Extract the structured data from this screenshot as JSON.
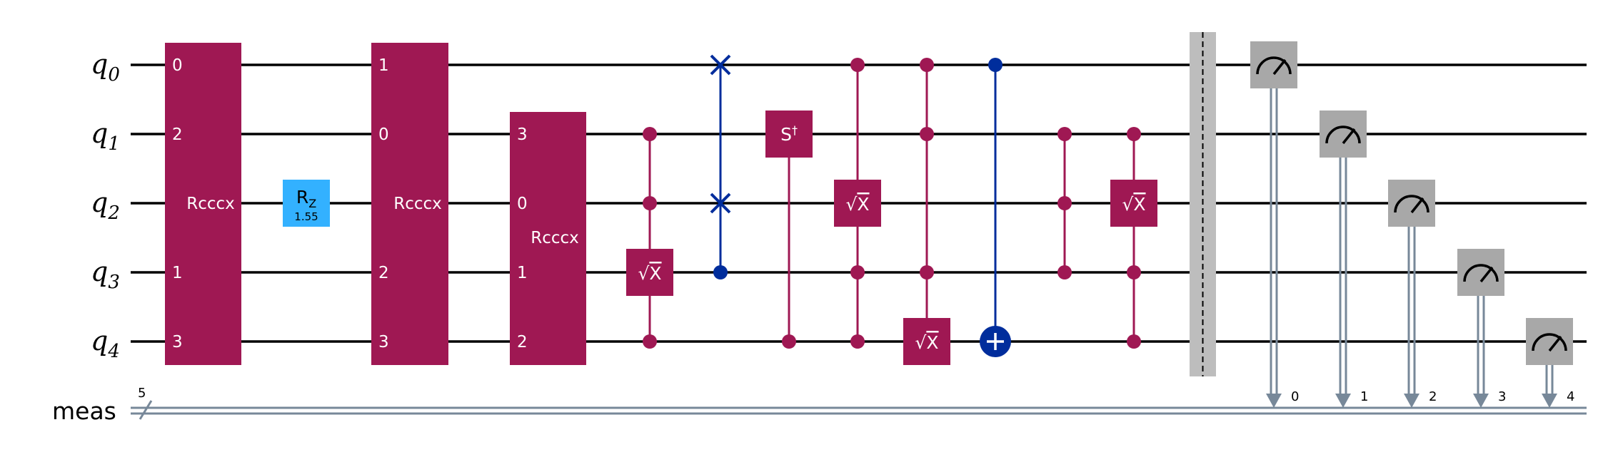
{
  "qubits": [
    "q",
    "q",
    "q",
    "q",
    "q"
  ],
  "qubit_indices": [
    "0",
    "1",
    "2",
    "3",
    "4"
  ],
  "classical_register": {
    "label": "meas",
    "size": "5"
  },
  "rcccx": [
    {
      "label": "Rcccx",
      "pins": [
        "0",
        "2",
        "",
        "1",
        "3"
      ]
    },
    {
      "label": "Rcccx",
      "pins": [
        "1",
        "0",
        "",
        "2",
        "3"
      ]
    },
    {
      "label": "Rcccx",
      "pins": [
        "",
        "3",
        "0",
        "1",
        "2"
      ]
    }
  ],
  "rz": {
    "label": "R",
    "sub": "Z",
    "param": "1.55"
  },
  "sdg": {
    "label": "S",
    "sup": "†"
  },
  "sx_label": "X",
  "measure_bits": [
    "0",
    "1",
    "2",
    "3",
    "4"
  ],
  "colors": {
    "gate": "#9f1853",
    "blue": "#002d9c",
    "rz": "#33b1ff",
    "measure": "#a8a8a8",
    "barrier": "#bdbdbd",
    "classical": "#778899"
  }
}
